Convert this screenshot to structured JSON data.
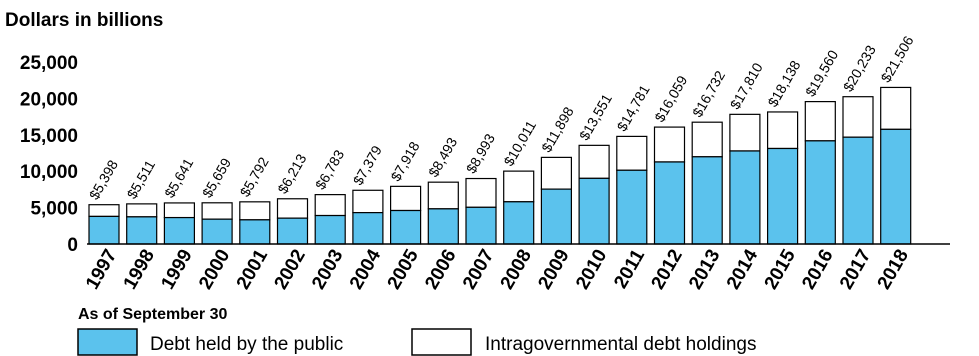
{
  "chart_data": {
    "type": "bar",
    "stacked": true,
    "ylabel": "Dollars in billions",
    "note": "As of September 30",
    "ylim": [
      0,
      25000
    ],
    "yticks": [
      "0",
      "5,000",
      "10,000",
      "15,000",
      "20,000",
      "25,000"
    ],
    "ytick_values": [
      0,
      5000,
      10000,
      15000,
      20000,
      25000
    ],
    "categories": [
      "1997",
      "1998",
      "1999",
      "2000",
      "2001",
      "2002",
      "2003",
      "2004",
      "2005",
      "2006",
      "2007",
      "2008",
      "2009",
      "2010",
      "2011",
      "2012",
      "2013",
      "2014",
      "2015",
      "2016",
      "2017",
      "2018"
    ],
    "series": [
      {
        "name": "Debt held by the public",
        "color": "#5bc2ed",
        "values": [
          3790,
          3730,
          3630,
          3410,
          3320,
          3550,
          3910,
          4310,
          4600,
          4830,
          5040,
          5800,
          7540,
          9020,
          10130,
          11270,
          11980,
          12780,
          13120,
          14170,
          14670,
          15750
        ]
      },
      {
        "name": "Intragovernmental debt holdings",
        "color": "#ffffff",
        "values": [
          1608,
          1781,
          2011,
          2249,
          2472,
          2663,
          2873,
          3069,
          3318,
          3663,
          3953,
          4211,
          4358,
          4531,
          4651,
          4789,
          4752,
          5030,
          5018,
          5390,
          5563,
          5756
        ]
      }
    ],
    "totals": [
      "$5,398",
      "$5,511",
      "$5,641",
      "$5,659",
      "$5,792",
      "$6,213",
      "$6,783",
      "$7,379",
      "$7,918",
      "$8,493",
      "$8,993",
      "$10,011",
      "$11,898",
      "$13,551",
      "$14,781",
      "$16,059",
      "$16,732",
      "$17,810",
      "$18,138",
      "$19,560",
      "$20,233",
      "$21,506"
    ],
    "total_values": [
      5398,
      5511,
      5641,
      5659,
      5792,
      6213,
      6783,
      7379,
      7918,
      8493,
      8993,
      10011,
      11898,
      13551,
      14781,
      16059,
      16732,
      17810,
      18138,
      19560,
      20233,
      21506
    ],
    "legend": [
      {
        "label": "Debt held by the public",
        "color": "#5bc2ed"
      },
      {
        "label": "Intragovernmental debt holdings",
        "color": "#ffffff"
      }
    ],
    "grid": false,
    "legend_position": "bottom-left"
  }
}
